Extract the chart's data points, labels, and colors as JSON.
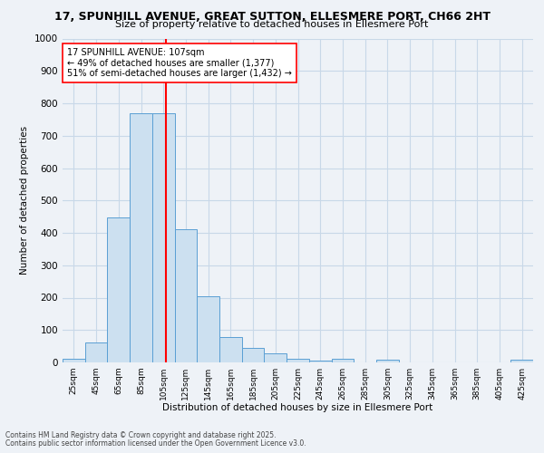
{
  "title1": "17, SPUNHILL AVENUE, GREAT SUTTON, ELLESMERE PORT, CH66 2HT",
  "title2": "Size of property relative to detached houses in Ellesmere Port",
  "xlabel": "Distribution of detached houses by size in Ellesmere Port",
  "ylabel": "Number of detached properties",
  "bin_labels": [
    "25sqm",
    "45sqm",
    "65sqm",
    "85sqm",
    "105sqm",
    "125sqm",
    "145sqm",
    "165sqm",
    "185sqm",
    "205sqm",
    "225sqm",
    "245sqm",
    "265sqm",
    "285sqm",
    "305sqm",
    "325sqm",
    "345sqm",
    "365sqm",
    "385sqm",
    "405sqm",
    "425sqm"
  ],
  "bar_values": [
    10,
    62,
    447,
    770,
    770,
    410,
    205,
    77,
    45,
    27,
    10,
    5,
    10,
    0,
    7,
    0,
    0,
    0,
    0,
    0,
    7
  ],
  "bar_color": "#cce0f0",
  "bar_edge_color": "#5a9fd4",
  "annotation_title": "17 SPUNHILL AVENUE: 107sqm",
  "annotation_line1": "← 49% of detached houses are smaller (1,377)",
  "annotation_line2": "51% of semi-detached houses are larger (1,432) →",
  "footer1": "Contains HM Land Registry data © Crown copyright and database right 2025.",
  "footer2": "Contains public sector information licensed under the Open Government Licence v3.0.",
  "bg_color": "#eef2f7",
  "grid_color": "#c8d8e8",
  "ylim": [
    0,
    1000
  ],
  "yticks": [
    0,
    100,
    200,
    300,
    400,
    500,
    600,
    700,
    800,
    900,
    1000
  ]
}
